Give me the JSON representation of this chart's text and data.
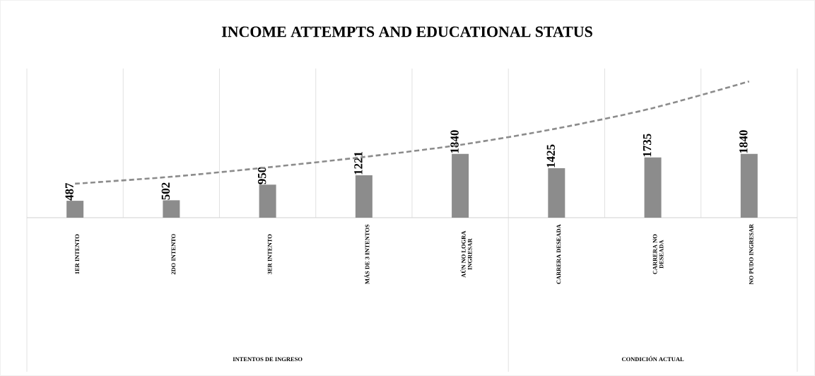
{
  "chart_data": {
    "type": "bar",
    "title": "INCOME ATTEMPTS AND EDUCATIONAL STATUS",
    "categories": [
      "1ER INTENTO",
      "2DO INTENTO",
      "3ER INTENTO",
      "MÁS DE 3 INTENTOS",
      "AÚN NO LOGRA INGRESAR",
      "CARRERA DESEADA",
      "CARRERA NO DESEADA",
      "NO PUDO INGRESAR"
    ],
    "series": [
      {
        "color": "#8c8c8c",
        "values": [
          487,
          502,
          950,
          1221,
          1840,
          1425,
          1735,
          1840
        ],
        "value_labels": [
          "487",
          "502",
          "950",
          "1221",
          "1840",
          "1425",
          "1735",
          "1840"
        ]
      },
      {
        "type": "line",
        "color": "#8c8c8c",
        "line_style": "dashed",
        "marker": "none",
        "values": [
          980,
          1180,
          1450,
          1750,
          2100,
          2570,
          3160,
          3930
        ]
      }
    ],
    "ylim": [
      0,
      4300
    ],
    "tick_labels": "x",
    "grid": "x",
    "annotations": [
      "INTENTOS DE INGRESO",
      "CONDICIÓN ACTUAL"
    ]
  }
}
